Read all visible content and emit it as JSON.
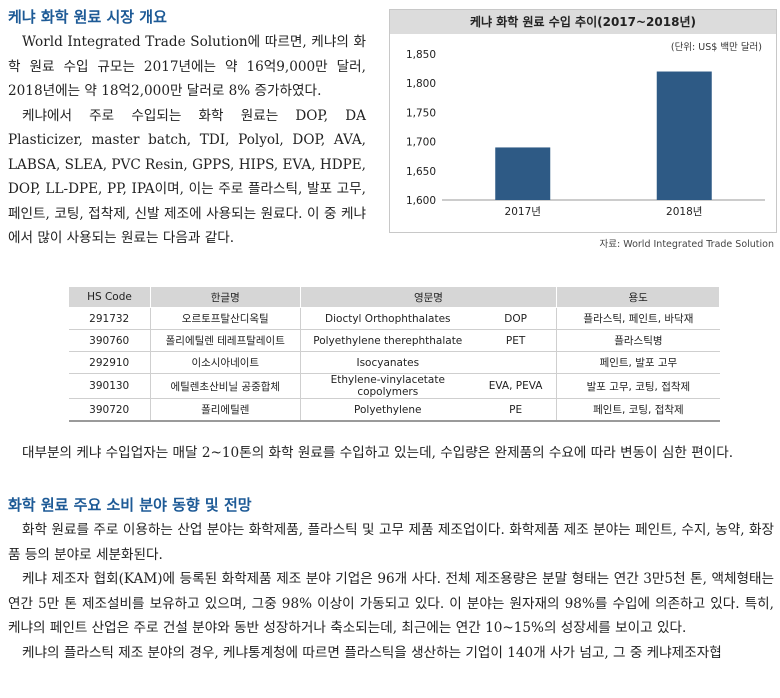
{
  "section1": {
    "title": "케냐 화학 원료 시장 개요",
    "p1": "World Integrated Trade Solution에 따르면, 케냐의 화학 원료 수입 규모는 2017년에는 약 16억9,000만 달러, 2018년에는 약 18억2,000만 달러로 8% 증가하였다.",
    "p2": "케냐에서 주로 수입되는 화학 원료는 DOP, DA Plasticizer, master batch, TDI, Polyol, DOP, AVA, LABSA, SLEA, PVC Resin, GPPS, HIPS, EVA, HDPE, DOP, LL-DPE, PP, IPA이며, 이는 주로 플라스틱, 발포 고무, 페인트, 코팅, 접착제, 신발 제조에 사용되는 원료다. 이 중 케냐에서 많이 사용되는 원료는 다음과 같다."
  },
  "chart_data": {
    "type": "bar",
    "title": "케냐 화학 원료 수입 추이(2017~2018년)",
    "unit": "(단위: US$ 백만 달러)",
    "categories": [
      "2017년",
      "2018년"
    ],
    "values": [
      1690,
      1820
    ],
    "ylim": [
      1600,
      1850
    ],
    "yticks": [
      "1,600",
      "1,650",
      "1,700",
      "1,750",
      "1,800",
      "1,850"
    ],
    "bar_color": "#2e5a85",
    "grid": false,
    "source": "자료: World Integrated Trade Solution"
  },
  "table": {
    "headers": [
      "HS Code",
      "한글명",
      "영문명",
      "용도"
    ],
    "rows": [
      [
        "291732",
        "오르토프탈산디옥틸",
        "Dioctyl Orthophthalates",
        "DOP",
        "플라스틱, 페인트, 바닥재"
      ],
      [
        "390760",
        "폴리에틸렌 테레프탈레이트",
        "Polyethylene therephthalate",
        "PET",
        "플라스틱병"
      ],
      [
        "292910",
        "이소시아네이트",
        "Isocyanates",
        "",
        "페인트, 발포 고무"
      ],
      [
        "390130",
        "에틸렌초산비닐 공중합체",
        "Ethylene-vinylacetate copolymers",
        "EVA,  PEVA",
        "발포 고무, 코팅, 접착제"
      ],
      [
        "390720",
        "폴리에틸렌",
        "Polyethylene",
        "PE",
        "페인트, 코팅, 접착제"
      ]
    ]
  },
  "after_table": "대부분의 케냐 수입업자는 매달 2~10톤의 화학 원료를 수입하고 있는데, 수입량은 완제품의 수요에 따라 변동이 심한 편이다.",
  "section2": {
    "title": "화학 원료 주요 소비 분야 동향 및 전망",
    "p1": "화학 원료를 주로 이용하는 산업 분야는 화학제품, 플라스틱 및 고무 제품 제조업이다. 화학제품 제조 분야는 페인트, 수지, 농약, 화장품 등의 분야로 세분화된다.",
    "p2": "케냐 제조자 협회(KAM)에 등록된 화학제품 제조 분야 기업은 96개 사다. 전체 제조용량은 분말 형태는 연간 3만5천 톤, 액체형태는 연간 5만 톤 제조설비를 보유하고 있으며, 그중 98% 이상이 가동되고 있다. 이 분야는 원자재의 98%를 수입에 의존하고 있다. 특히, 케냐의 페인트 산업은 주로 건설 분야와 동반 성장하거나 축소되는데, 최근에는 연간 10~15%의 성장세를 보이고 있다.",
    "p3": "케냐의 플라스틱 제조 분야의 경우, 케냐통계청에 따르면 플라스틱을 생산하는 기업이 140개 사가 넘고, 그 중 케냐제조자협"
  }
}
